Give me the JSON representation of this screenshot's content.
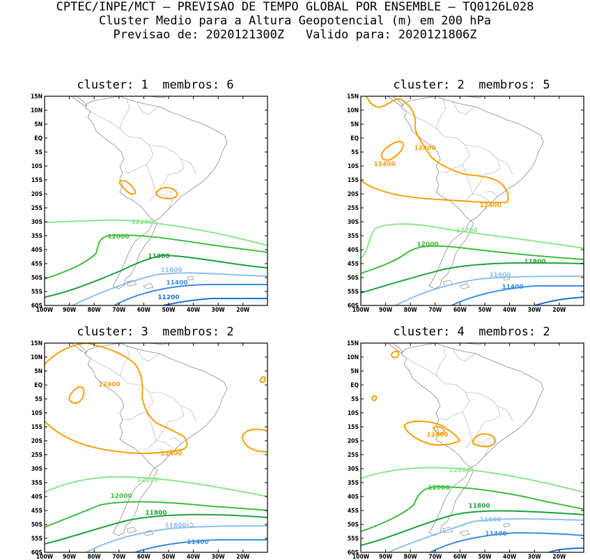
{
  "header": {
    "line1": "CPTEC/INPE/MCT – PREVISAO DE TEMPO GLOBAL POR ENSEMBLE – TQ0126L028",
    "line2": "Cluster Medio para a Altura Geopotencial (m) em 200 hPa",
    "line3": "Previsao de: 2020121300Z   Valido para: 2020121806Z"
  },
  "axes": {
    "lat_labels": [
      "15N",
      "10N",
      "5N",
      "EQ",
      "5S",
      "10S",
      "15S",
      "20S",
      "25S",
      "30S",
      "35S",
      "40S",
      "45S",
      "50S",
      "55S",
      "60S"
    ],
    "lon_labels": [
      "100W",
      "90W",
      "80W",
      "70W",
      "60W",
      "50W",
      "40W",
      "30W",
      "20W"
    ]
  },
  "colors": {
    "c11200": "#1e6fd0",
    "c11400": "#3c8ce0",
    "c11600": "#8cc0f0",
    "c11800": "#1ea03c",
    "c12000": "#3cbe3c",
    "c12200": "#8ce68c",
    "c12400": "#f5a00a"
  },
  "panels": [
    {
      "title": "cluster: 1  membros: 6",
      "labels": [
        "12200",
        "12000",
        "11800",
        "11600",
        "11400",
        "11200"
      ]
    },
    {
      "title": "cluster: 2  membros: 5",
      "labels": [
        "12400",
        "12400",
        "12400",
        "12200",
        "12000",
        "11800",
        "11600",
        "11400"
      ]
    },
    {
      "title": "cluster: 3  membros: 2",
      "labels": [
        "12400",
        "12400",
        "12200",
        "12000",
        "11800",
        "11600",
        "11400"
      ]
    },
    {
      "title": "cluster: 4  membros: 2",
      "labels": [
        "12400",
        "12200",
        "12000",
        "11800",
        "11600",
        "11400"
      ]
    }
  ]
}
